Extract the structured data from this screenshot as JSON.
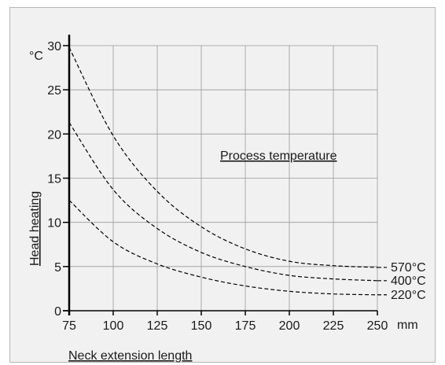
{
  "chart_data": {
    "type": "line",
    "xlabel": "Neck extension length",
    "ylabel": "Head heating",
    "x_unit": "mm",
    "y_unit": "°C",
    "annotation": "Process temperature",
    "xlim": [
      75,
      250
    ],
    "ylim": [
      0,
      30
    ],
    "x_ticks": [
      "75",
      "100",
      "125",
      "150",
      "175",
      "200",
      "225",
      "250"
    ],
    "y_ticks": [
      "0",
      "5",
      "10",
      "15",
      "20",
      "25",
      "30"
    ],
    "grid": true,
    "line_style": "dashed",
    "series": [
      {
        "name": "570°C",
        "x": [
          75,
          100,
          125,
          150,
          175,
          200,
          225,
          250
        ],
        "y": [
          29.8,
          19.8,
          13.5,
          9.5,
          7.0,
          5.6,
          5.1,
          4.9
        ]
      },
      {
        "name": "400°C",
        "x": [
          75,
          100,
          125,
          150,
          175,
          200,
          225,
          250
        ],
        "y": [
          21.3,
          13.7,
          9.3,
          6.6,
          5.0,
          4.0,
          3.6,
          3.4
        ]
      },
      {
        "name": "220°C",
        "x": [
          75,
          100,
          125,
          150,
          175,
          200,
          225,
          250
        ],
        "y": [
          12.5,
          7.8,
          5.3,
          3.8,
          2.8,
          2.2,
          1.9,
          1.8
        ]
      }
    ]
  }
}
